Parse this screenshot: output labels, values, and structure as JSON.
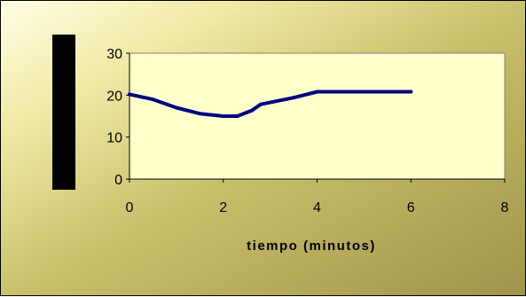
{
  "chart_data": {
    "type": "line",
    "title": "",
    "xlabel": "tiempo (minutos)",
    "ylabel": "",
    "xlim": [
      0,
      8
    ],
    "ylim": [
      0,
      30
    ],
    "xticks": [
      "0",
      "2",
      "4",
      "6",
      "8"
    ],
    "yticks": [
      "0",
      "10",
      "20",
      "30"
    ],
    "grid": false,
    "legend": "none",
    "series": [
      {
        "color": "#000080",
        "x": [
          0,
          0.5,
          1,
          1.5,
          2,
          2.3,
          2.6,
          2.8,
          3.5,
          4,
          5,
          6
        ],
        "values": [
          20.2,
          19,
          17,
          15.6,
          15,
          15,
          16.3,
          17.8,
          19.4,
          20.8,
          20.8,
          20.8
        ]
      }
    ],
    "colors": {
      "plot_background": "#ffffcc",
      "line": "#000080",
      "ylabel_block": "#000000"
    }
  }
}
